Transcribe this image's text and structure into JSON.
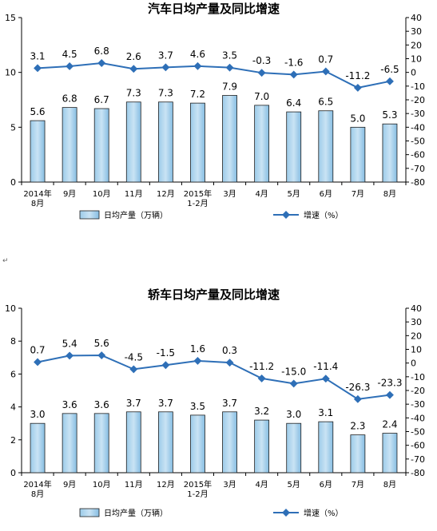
{
  "chart_data": [
    {
      "type": "bar",
      "title": "汽车日均产量及同比增速",
      "categories": [
        [
          "2014年",
          "8月"
        ],
        [
          "9月"
        ],
        [
          "10月"
        ],
        [
          "11月"
        ],
        [
          "12月"
        ],
        [
          "2015年",
          "1-2月"
        ],
        [
          "3月"
        ],
        [
          "4月"
        ],
        [
          "5月"
        ],
        [
          "6月"
        ],
        [
          "7月"
        ],
        [
          "8月"
        ]
      ],
      "ylim": [
        0,
        15
      ],
      "y_ticks": [
        "0",
        "5",
        "10",
        "15"
      ],
      "y2lim": [
        -80,
        40
      ],
      "y2_ticks": [
        "40",
        "30",
        "20",
        "10",
        "0",
        "-10",
        "-20",
        "-30",
        "-40",
        "-50",
        "-60",
        "-70",
        "-80"
      ],
      "series": [
        {
          "name": "日均产量（万辆）",
          "type": "bar",
          "axis": "left",
          "values": [
            5.6,
            6.8,
            6.7,
            7.3,
            7.3,
            7.2,
            7.9,
            7.0,
            6.4,
            6.5,
            5.0,
            5.3
          ],
          "labels": [
            "5.6",
            "6.8",
            "6.7",
            "7.3",
            "7.3",
            "7.2",
            "7.9",
            "7.0",
            "6.4",
            "6.5",
            "5.0",
            "5.3"
          ]
        },
        {
          "name": "增速（%）",
          "type": "line",
          "axis": "right",
          "values": [
            3.1,
            4.5,
            6.8,
            2.6,
            3.7,
            4.6,
            3.5,
            -0.3,
            -1.6,
            0.7,
            -11.2,
            -6.5
          ],
          "labels": [
            "3.1",
            "4.5",
            "6.8",
            "2.6",
            "3.7",
            "4.6",
            "3.5",
            "-0.3",
            "-1.6",
            "0.7",
            "-11.2",
            "-6.5"
          ]
        }
      ],
      "legend": "bottom",
      "grid": false
    },
    {
      "type": "bar",
      "title": "轿车日均产量及同比增速",
      "categories": [
        [
          "2014年",
          "8月"
        ],
        [
          "9月"
        ],
        [
          "10月"
        ],
        [
          "11月"
        ],
        [
          "12月"
        ],
        [
          "2015年",
          "1-2月"
        ],
        [
          "3月"
        ],
        [
          "4月"
        ],
        [
          "5月"
        ],
        [
          "6月"
        ],
        [
          "7月"
        ],
        [
          "8月"
        ]
      ],
      "ylim": [
        0,
        10
      ],
      "y_ticks": [
        "0",
        "2",
        "4",
        "6",
        "8",
        "10"
      ],
      "y2lim": [
        -80,
        40
      ],
      "y2_ticks": [
        "40",
        "30",
        "20",
        "10",
        "0",
        "-10",
        "-20",
        "-30",
        "-40",
        "-50",
        "-60",
        "-70",
        "-80"
      ],
      "series": [
        {
          "name": "日均产量（万辆）",
          "type": "bar",
          "axis": "left",
          "values": [
            3.0,
            3.6,
            3.6,
            3.7,
            3.7,
            3.5,
            3.7,
            3.2,
            3.0,
            3.1,
            2.3,
            2.4
          ],
          "labels": [
            "3.0",
            "3.6",
            "3.6",
            "3.7",
            "3.7",
            "3.5",
            "3.7",
            "3.2",
            "3.0",
            "3.1",
            "2.3",
            "2.4"
          ]
        },
        {
          "name": "增速（%）",
          "type": "line",
          "axis": "right",
          "values": [
            0.7,
            5.4,
            5.6,
            -4.5,
            -1.5,
            1.6,
            0.3,
            -11.2,
            -15.0,
            -11.4,
            -26.3,
            -23.3
          ],
          "labels": [
            "0.7",
            "5.4",
            "5.6",
            "-4.5",
            "-1.5",
            "1.6",
            "0.3",
            "-11.2",
            "-15.0",
            "-11.4",
            "-26.3",
            "-23.3"
          ]
        }
      ],
      "legend": "bottom",
      "grid": false
    }
  ],
  "marks": {
    "paragraph": "↵"
  }
}
